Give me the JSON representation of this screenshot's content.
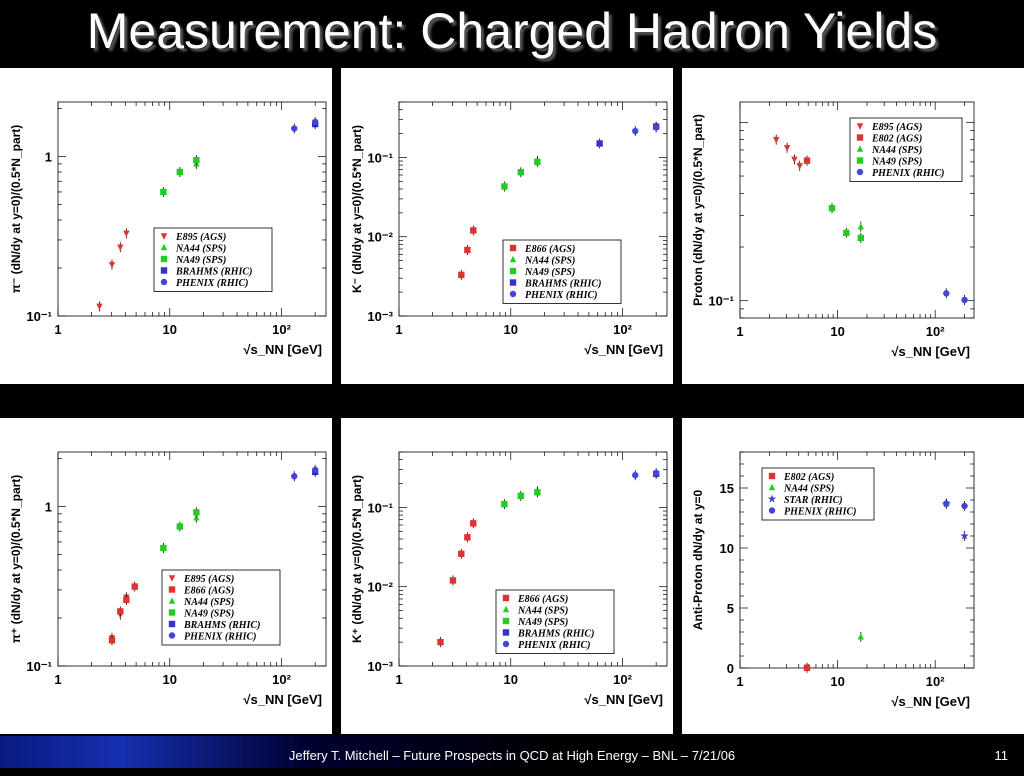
{
  "slide": {
    "title": "Measurement: Charged Hadron Yields",
    "footer": "Jeffery T. Mitchell – Future Prospects in QCD at High Energy – BNL – 7/21/06",
    "page_number": "11"
  },
  "colors": {
    "red": "#dd3333",
    "green": "#22cc22",
    "blue": "#3333cc",
    "violet": "#4444dd",
    "title": "#ffffff"
  },
  "chart_data": [
    {
      "type": "scatter",
      "panel": "pi-minus",
      "xlog": true,
      "ylog": true,
      "xlim": [
        1,
        250
      ],
      "ylim": [
        0.1,
        2.2
      ],
      "ylabel": "π⁻ (dN/dy at y=0)/(0.5*N_part)",
      "xlabel": "√s_NN [GeV]",
      "xticks": [
        {
          "v": 1,
          "t": "1"
        },
        {
          "v": 10,
          "t": "10"
        },
        {
          "v": 100,
          "t": "10²"
        }
      ],
      "yticks": [
        {
          "v": 0.1,
          "t": "10⁻¹"
        },
        {
          "v": 1,
          "t": "1"
        }
      ],
      "legend": "bottom-right",
      "series": [
        {
          "name": "E895 (AGS)",
          "marker": "tri-down",
          "color": "#dd3333",
          "x": [
            2.35,
            3.04,
            3.61,
            4.09
          ],
          "y": [
            0.115,
            0.21,
            0.27,
            0.33
          ]
        },
        {
          "name": "NA44 (SPS)",
          "marker": "tri-up",
          "color": "#22cc22",
          "x": [
            17.3
          ],
          "y": [
            0.9
          ]
        },
        {
          "name": "NA49 (SPS)",
          "marker": "square",
          "color": "#22cc22",
          "x": [
            8.77,
            12.3,
            17.3
          ],
          "y": [
            0.6,
            0.8,
            0.95
          ]
        },
        {
          "name": "BRAHMS (RHIC)",
          "marker": "square",
          "color": "#3333cc",
          "x": [
            200
          ],
          "y": [
            1.6
          ]
        },
        {
          "name": "PHENIX (RHIC)",
          "marker": "circle",
          "color": "#4444dd",
          "x": [
            130,
            200
          ],
          "y": [
            1.5,
            1.65
          ]
        }
      ]
    },
    {
      "type": "scatter",
      "panel": "k-minus",
      "xlog": true,
      "ylog": true,
      "xlim": [
        1,
        250
      ],
      "ylim": [
        0.001,
        0.5
      ],
      "ylabel": "K⁻ (dN/dy at y=0)/(0.5*N_part)",
      "xlabel": "√s_NN [GeV]",
      "xticks": [
        {
          "v": 1,
          "t": "1"
        },
        {
          "v": 10,
          "t": "10"
        },
        {
          "v": 100,
          "t": "10²"
        }
      ],
      "yticks": [
        {
          "v": 0.001,
          "t": "10⁻³"
        },
        {
          "v": 0.01,
          "t": "10⁻²"
        },
        {
          "v": 0.1,
          "t": "10⁻¹"
        }
      ],
      "legend": "bottom-right",
      "series": [
        {
          "name": "E866 (AGS)",
          "marker": "square",
          "color": "#dd3333",
          "x": [
            3.61,
            4.09,
            4.62
          ],
          "y": [
            0.0033,
            0.0068,
            0.012
          ]
        },
        {
          "name": "NA44 (SPS)",
          "marker": "tri-up",
          "color": "#22cc22",
          "x": [
            17.3
          ],
          "y": [
            0.09
          ]
        },
        {
          "name": "NA49 (SPS)",
          "marker": "square",
          "color": "#22cc22",
          "x": [
            8.77,
            12.3,
            17.3
          ],
          "y": [
            0.043,
            0.065,
            0.088
          ]
        },
        {
          "name": "BRAHMS (RHIC)",
          "marker": "square",
          "color": "#3333cc",
          "x": [
            62.4,
            200
          ],
          "y": [
            0.15,
            0.245
          ]
        },
        {
          "name": "PHENIX (RHIC)",
          "marker": "circle",
          "color": "#4444dd",
          "x": [
            130,
            200
          ],
          "y": [
            0.215,
            0.24
          ]
        }
      ]
    },
    {
      "type": "scatter",
      "panel": "proton",
      "xlog": true,
      "ylog": true,
      "xlim": [
        1,
        250
      ],
      "ylim": [
        0.08,
        1.3
      ],
      "ylabel": "Proton (dN/dy at y=0)/(0.5*N_part)",
      "xlabel": "√s_NN [GeV]",
      "xticks": [
        {
          "v": 1,
          "t": "1"
        },
        {
          "v": 10,
          "t": "10"
        },
        {
          "v": 100,
          "t": "10²"
        }
      ],
      "yticks": [
        {
          "v": 0.1,
          "t": "10⁻¹"
        }
      ],
      "legend": "top-right",
      "series": [
        {
          "name": "E895 (AGS)",
          "marker": "tri-down",
          "color": "#dd3333",
          "x": [
            2.35,
            3.04,
            3.61,
            4.09
          ],
          "y": [
            0.8,
            0.72,
            0.62,
            0.57
          ]
        },
        {
          "name": "E802 (AGS)",
          "marker": "square",
          "color": "#dd3333",
          "x": [
            4.86
          ],
          "y": [
            0.61
          ]
        },
        {
          "name": "NA44 (SPS)",
          "marker": "tri-up",
          "color": "#22cc22",
          "x": [
            17.3
          ],
          "y": [
            0.26
          ]
        },
        {
          "name": "NA49 (SPS)",
          "marker": "square",
          "color": "#22cc22",
          "x": [
            8.77,
            12.3,
            17.3
          ],
          "y": [
            0.33,
            0.24,
            0.225
          ]
        },
        {
          "name": "PHENIX (RHIC)",
          "marker": "circle",
          "color": "#4444dd",
          "x": [
            130,
            200
          ],
          "y": [
            0.11,
            0.101
          ]
        }
      ]
    },
    {
      "type": "scatter",
      "panel": "pi-plus",
      "xlog": true,
      "ylog": true,
      "xlim": [
        1,
        250
      ],
      "ylim": [
        0.1,
        2.2
      ],
      "ylabel": "π⁺ (dN/dy at y=0)/(0.5*N_part)",
      "xlabel": "√s_NN [GeV]",
      "xticks": [
        {
          "v": 1,
          "t": "1"
        },
        {
          "v": 10,
          "t": "10"
        },
        {
          "v": 100,
          "t": "10²"
        }
      ],
      "yticks": [
        {
          "v": 0.1,
          "t": "10⁻¹"
        },
        {
          "v": 1,
          "t": "1"
        }
      ],
      "legend": "bottom-right",
      "series": [
        {
          "name": "E895 (AGS)",
          "marker": "tri-down",
          "color": "#dd3333",
          "x": [
            3.04,
            3.61,
            4.09
          ],
          "y": [
            0.15,
            0.21,
            0.27
          ]
        },
        {
          "name": "E866 (AGS)",
          "marker": "square",
          "color": "#dd3333",
          "x": [
            3.04,
            3.61,
            4.09,
            4.86
          ],
          "y": [
            0.145,
            0.22,
            0.26,
            0.315
          ]
        },
        {
          "name": "NA44 (SPS)",
          "marker": "tri-up",
          "color": "#22cc22",
          "x": [
            17.3
          ],
          "y": [
            0.85
          ]
        },
        {
          "name": "NA49 (SPS)",
          "marker": "square",
          "color": "#22cc22",
          "x": [
            8.77,
            12.3,
            17.3
          ],
          "y": [
            0.55,
            0.75,
            0.92
          ]
        },
        {
          "name": "BRAHMS (RHIC)",
          "marker": "square",
          "color": "#3333cc",
          "x": [
            200
          ],
          "y": [
            1.65
          ]
        },
        {
          "name": "PHENIX (RHIC)",
          "marker": "circle",
          "color": "#4444dd",
          "x": [
            130,
            200
          ],
          "y": [
            1.55,
            1.7
          ]
        }
      ]
    },
    {
      "type": "scatter",
      "panel": "k-plus",
      "xlog": true,
      "ylog": true,
      "xlim": [
        1,
        250
      ],
      "ylim": [
        0.001,
        0.5
      ],
      "ylabel": "K⁺ (dN/dy at y=0)/(0.5*N_part)",
      "xlabel": "√s_NN [GeV]",
      "xticks": [
        {
          "v": 1,
          "t": "1"
        },
        {
          "v": 10,
          "t": "10"
        },
        {
          "v": 100,
          "t": "10²"
        }
      ],
      "yticks": [
        {
          "v": 0.001,
          "t": "10⁻³"
        },
        {
          "v": 0.01,
          "t": "10⁻²"
        },
        {
          "v": 0.1,
          "t": "10⁻¹"
        }
      ],
      "legend": "bottom-right",
      "series": [
        {
          "name": "E866 (AGS)",
          "marker": "square",
          "color": "#dd3333",
          "x": [
            2.35,
            3.04,
            3.61,
            4.09,
            4.62
          ],
          "y": [
            0.002,
            0.012,
            0.026,
            0.042,
            0.063
          ]
        },
        {
          "name": "NA44 (SPS)",
          "marker": "tri-up",
          "color": "#22cc22",
          "x": [
            17.3
          ],
          "y": [
            0.16
          ]
        },
        {
          "name": "NA49 (SPS)",
          "marker": "square",
          "color": "#22cc22",
          "x": [
            8.77,
            12.3,
            17.3
          ],
          "y": [
            0.11,
            0.14,
            0.155
          ]
        },
        {
          "name": "BRAHMS (RHIC)",
          "marker": "square",
          "color": "#3333cc",
          "x": [
            200
          ],
          "y": [
            0.265
          ]
        },
        {
          "name": "PHENIX (RHIC)",
          "marker": "circle",
          "color": "#4444dd",
          "x": [
            130,
            200
          ],
          "y": [
            0.255,
            0.27
          ]
        }
      ]
    },
    {
      "type": "scatter",
      "panel": "anti-proton",
      "xlog": true,
      "ylog": false,
      "xlim": [
        1,
        250
      ],
      "ylim": [
        0,
        18
      ],
      "ylabel": "Anti-Proton dN/dy at y=0",
      "xlabel": "√s_NN [GeV]",
      "xticks": [
        {
          "v": 1,
          "t": "1"
        },
        {
          "v": 10,
          "t": "10"
        },
        {
          "v": 100,
          "t": "10²"
        }
      ],
      "yticks": [
        {
          "v": 0,
          "t": "0"
        },
        {
          "v": 5,
          "t": "5"
        },
        {
          "v": 10,
          "t": "10"
        },
        {
          "v": 15,
          "t": "15"
        }
      ],
      "legend": "top-left",
      "series": [
        {
          "name": "E802 (AGS)",
          "marker": "square",
          "color": "#dd3333",
          "x": [
            4.86
          ],
          "y": [
            0.02
          ]
        },
        {
          "name": "NA44 (SPS)",
          "marker": "tri-up",
          "color": "#22cc22",
          "x": [
            17.3
          ],
          "y": [
            2.6
          ]
        },
        {
          "name": "STAR (RHIC)",
          "marker": "star",
          "color": "#4444dd",
          "x": [
            130,
            200
          ],
          "y": [
            13.7,
            11.0
          ]
        },
        {
          "name": "PHENIX (RHIC)",
          "marker": "circle",
          "color": "#4444dd",
          "x": [
            130,
            200
          ],
          "y": [
            13.7,
            13.5
          ]
        }
      ]
    }
  ]
}
